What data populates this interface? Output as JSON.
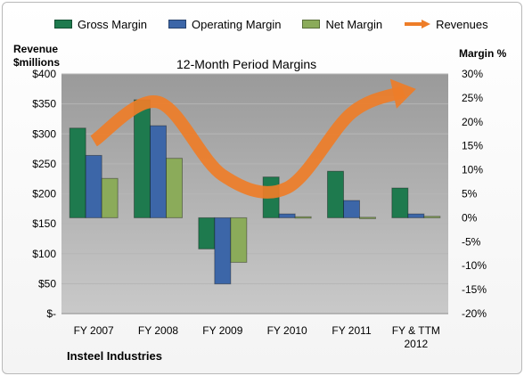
{
  "legend": {
    "gross": "Gross Margin",
    "operating": "Operating Margin",
    "net": "Net Margin",
    "revenues": "Revenues"
  },
  "titles": {
    "chart": "12-Month Period Margins",
    "left_axis": [
      "Revenue",
      "$millions"
    ],
    "right_axis": "Margin %",
    "company": "Insteel Industries"
  },
  "colors": {
    "gross": "#1e7a4e",
    "operating": "#3c66a8",
    "net": "#8bab5a",
    "revenues": "#ee7d28",
    "plot_top": "#9a9a9a",
    "plot_bottom": "#c9c9c9"
  },
  "chart_data": {
    "type": "bar",
    "categories": [
      "FY 2007",
      "FY 2008",
      "FY 2009",
      "FY 2010",
      "FY 2011",
      "FY & TTM 2012"
    ],
    "series": [
      {
        "name": "Gross Margin",
        "axis": "right",
        "values": [
          18.7,
          24.6,
          -6.5,
          8.5,
          9.7,
          6.2
        ]
      },
      {
        "name": "Operating Margin",
        "axis": "right",
        "values": [
          13.0,
          19.2,
          -13.8,
          0.8,
          3.6,
          0.8
        ]
      },
      {
        "name": "Net Margin",
        "axis": "right",
        "values": [
          8.2,
          12.4,
          -9.3,
          0.2,
          0.1,
          0.3
        ]
      },
      {
        "name": "Revenues",
        "axis": "left",
        "type": "line",
        "values": [
          288,
          353,
          231,
          210,
          335,
          375
        ]
      }
    ],
    "left_axis": {
      "label": "Revenue $millions",
      "range": [
        0,
        400
      ],
      "step": 50,
      "ticks": [
        "$-",
        "$50",
        "$100",
        "$150",
        "$200",
        "$250",
        "$300",
        "$350",
        "$400"
      ]
    },
    "right_axis": {
      "label": "Margin %",
      "range": [
        -20,
        30
      ],
      "step": 5,
      "ticks": [
        "-20%",
        "-15%",
        "-10%",
        "-5%",
        "0%",
        "5%",
        "10%",
        "15%",
        "20%",
        "25%",
        "30%"
      ]
    },
    "title": "12-Month Period Margins",
    "grid": true,
    "legend_position": "top"
  }
}
